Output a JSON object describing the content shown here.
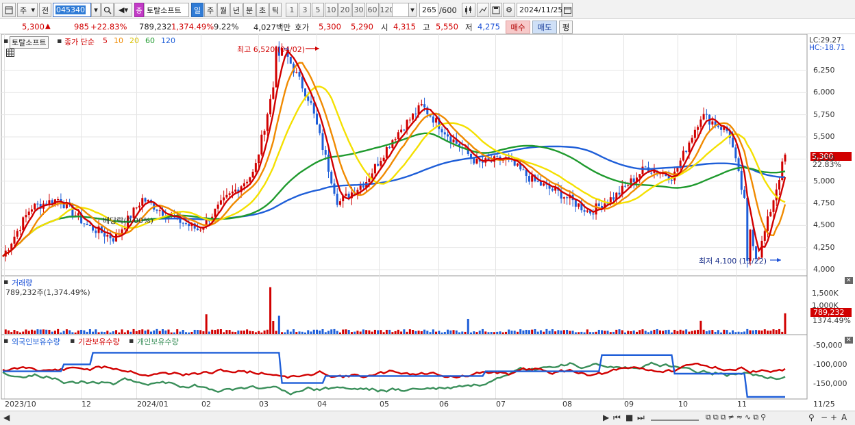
{
  "toolbar": {
    "type_select": "주",
    "range_select": "전",
    "code": "045340",
    "stock_name": "토탈소프트",
    "stock_badge": "종",
    "periods": [
      "일",
      "주",
      "월",
      "년",
      "분",
      "초",
      "틱"
    ],
    "active_period": "일",
    "intervals": [
      "1",
      "3",
      "5",
      "10",
      "20",
      "30",
      "60",
      "120"
    ],
    "count": "265",
    "count_max": "/600",
    "date": "2024/11/25"
  },
  "quote": {
    "price": "5,300",
    "change_arrow": "▲",
    "change": "985",
    "change_pct": "+22.83%",
    "volume": "789,232",
    "volume_pct": "1,374.49%",
    "turnover": "9.22%",
    "amount": "4,027백만",
    "hoga_label": "호가",
    "ask": "5,300",
    "bid": "5,290",
    "open_label": "시",
    "open": "4,315",
    "high_label": "고",
    "high": "5,550",
    "low_label": "저",
    "low": "4,275",
    "buy_label": "매수",
    "sell_label": "매도",
    "eval_label": "평"
  },
  "price_panel": {
    "name_tag": "토탈소프트",
    "ma_prefix": "종가 단순",
    "ma_periods": [
      {
        "label": "5",
        "color": "#d10000"
      },
      {
        "label": "10",
        "color": "#f08a00"
      },
      {
        "label": "20",
        "color": "#f4e000"
      },
      {
        "label": "60",
        "color": "#1f9a2e"
      },
      {
        "label": "120",
        "color": "#1e5ed8"
      }
    ],
    "high_annotation": "최고 6,520 (04/02)",
    "low_annotation": "최저 4,100 (11/22)",
    "dividend_label": "배당락(0.00%)",
    "lc": "LC:29.27",
    "hc": "HC:-18.71",
    "last_price": "5,300",
    "last_pct": "22.83%",
    "y_ticks": [
      "6,250",
      "6,000",
      "5,750",
      "5,500",
      "5,250",
      "5,000",
      "4,750",
      "4,500",
      "4,250",
      "4,000"
    ]
  },
  "volume_panel": {
    "title": "거래량",
    "value": "789,232주(1,374.49%)",
    "y_ticks": [
      "1,500K",
      "1,000K"
    ],
    "last_value": "789,232",
    "last_pct": "1374.49%"
  },
  "holdings_panel": {
    "legend": [
      "외국인보유수량",
      "기관보유수량",
      "개인보유수량"
    ],
    "y_ticks": [
      "-50,000",
      "-100,000",
      "-150,000"
    ]
  },
  "x_axis": {
    "labels": [
      "2023/10",
      "12",
      "2024/01",
      "02",
      "03",
      "04",
      "05",
      "06",
      "07",
      "08",
      "09",
      "10",
      "11",
      "11/25"
    ]
  },
  "colors": {
    "up": "#d10000",
    "down": "#1e5ed8",
    "foreign": "#1e5ed8",
    "institution": "#d10000",
    "individual": "#3a8f5a"
  },
  "chart_data": {
    "type": "candlestick",
    "title": "토탈소프트",
    "x_range": [
      "2023/10",
      "2024/11/25"
    ],
    "ylim": [
      4000,
      6500
    ],
    "price_key_points": [
      {
        "x": "2023/10",
        "close": 4150
      },
      {
        "x": "10",
        "close": 4700
      },
      {
        "x": "11",
        "close": 4800
      },
      {
        "x": "12",
        "close": 4500
      },
      {
        "x": "2024/01",
        "close": 4350
      },
      {
        "x": "01",
        "close": 4800
      },
      {
        "x": "02",
        "close": 4600
      },
      {
        "x": "02",
        "close": 4450
      },
      {
        "x": "03",
        "close": 4800
      },
      {
        "x": "03",
        "close": 5100
      },
      {
        "x": "04/02",
        "close": 6520
      },
      {
        "x": "04",
        "close": 5900
      },
      {
        "x": "04",
        "close": 4750
      },
      {
        "x": "05",
        "close": 5000
      },
      {
        "x": "05",
        "close": 5500
      },
      {
        "x": "06",
        "close": 5850
      },
      {
        "x": "06",
        "close": 5500
      },
      {
        "x": "07",
        "close": 5200
      },
      {
        "x": "07",
        "close": 5250
      },
      {
        "x": "08",
        "close": 5000
      },
      {
        "x": "08",
        "close": 4850
      },
      {
        "x": "09",
        "close": 4650
      },
      {
        "x": "09",
        "close": 4850
      },
      {
        "x": "10",
        "close": 5150
      },
      {
        "x": "10",
        "close": 5050
      },
      {
        "x": "11",
        "close": 5750
      },
      {
        "x": "11",
        "close": 5550
      },
      {
        "x": "11/22",
        "close": 4100
      },
      {
        "x": "11/25",
        "close": 5300
      }
    ],
    "moving_averages": [
      "5",
      "10",
      "20",
      "60",
      "120"
    ],
    "volume_peak": "1,500K+ (04)",
    "last_volume": 789232
  }
}
